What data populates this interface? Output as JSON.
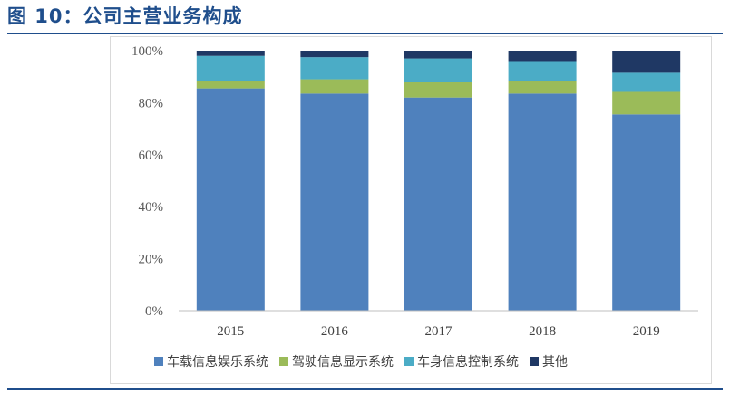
{
  "header": {
    "title": "图 10：公司主营业务构成"
  },
  "colors": {
    "title": "#1f4e8c",
    "rule": "#1f4e8c"
  },
  "chart_data": {
    "type": "bar",
    "stacked": true,
    "title": "",
    "xlabel": "",
    "ylabel": "",
    "categories": [
      "2015",
      "2016",
      "2017",
      "2018",
      "2019"
    ],
    "ylim": [
      0,
      100
    ],
    "yticks": [
      "0%",
      "20%",
      "40%",
      "60%",
      "80%",
      "100%"
    ],
    "grid": false,
    "legend_position": "bottom",
    "series": [
      {
        "name": "车载信息娱乐系统",
        "color": "#4f81bd",
        "values": [
          85.5,
          83.5,
          82,
          83.5,
          75.5
        ]
      },
      {
        "name": "驾驶信息显示系统",
        "color": "#9bbb59",
        "values": [
          3,
          5.5,
          6,
          5,
          9
        ]
      },
      {
        "name": "车身信息控制系统",
        "color": "#4bacc6",
        "values": [
          9.5,
          8.5,
          9,
          7.5,
          7
        ]
      },
      {
        "name": "其他",
        "color": "#1f3864",
        "values": [
          2,
          2.5,
          3,
          4,
          8.5
        ]
      }
    ]
  }
}
